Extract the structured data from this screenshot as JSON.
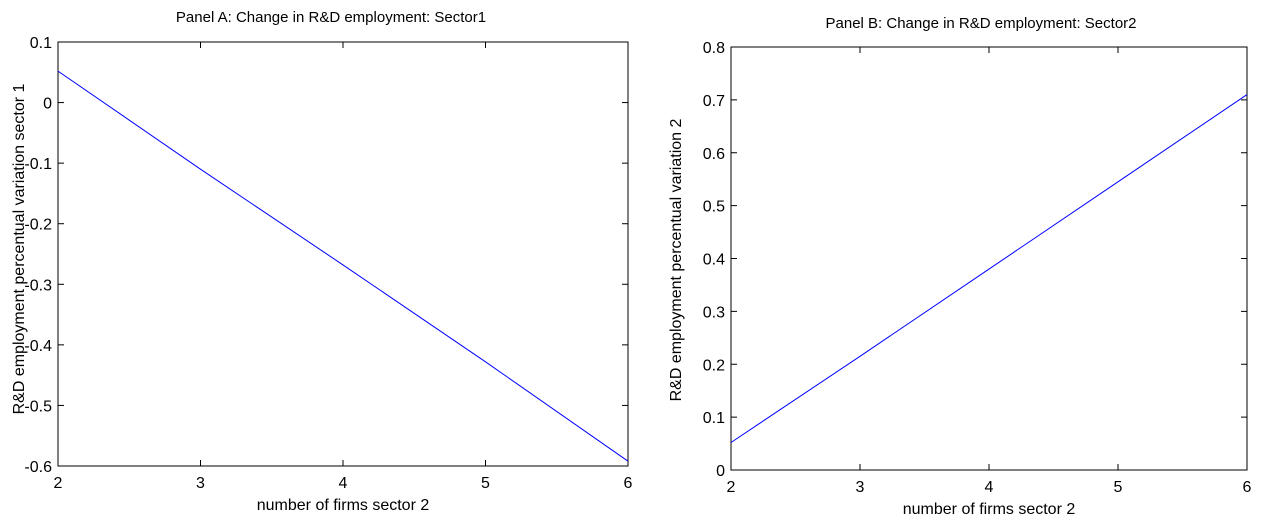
{
  "chart_data": [
    {
      "type": "line",
      "title": "Panel A: Change in R&D employment: Sector1",
      "xlabel": "number of firms sector 2",
      "ylabel": "R&D employment percentual variation sector 1",
      "xlim": [
        2,
        6
      ],
      "ylim": [
        -0.6,
        0.1
      ],
      "xticks": [
        2,
        3,
        4,
        5,
        6
      ],
      "xtick_labels": [
        "2",
        "3",
        "4",
        "5",
        "6"
      ],
      "yticks": [
        -0.6,
        -0.5,
        -0.4,
        -0.3,
        -0.2,
        -0.1,
        0,
        0.1
      ],
      "ytick_labels": [
        "-0.6",
        "-0.5",
        "-0.4",
        "-0.3",
        "-0.2",
        "-0.1",
        "0",
        "0.1"
      ],
      "grid": false,
      "series": [
        {
          "color": "#0000ff",
          "x": [
            2,
            3,
            4,
            5,
            6
          ],
          "y": [
            0.052,
            -0.11,
            -0.268,
            -0.428,
            -0.592
          ]
        }
      ]
    },
    {
      "type": "line",
      "title": "Panel B: Change in R&D employment: Sector2",
      "xlabel": "number of firms sector 2",
      "ylabel": "R&D employment percentual variation 2",
      "xlim": [
        2,
        6
      ],
      "ylim": [
        0,
        0.8
      ],
      "xticks": [
        2,
        3,
        4,
        5,
        6
      ],
      "xtick_labels": [
        "2",
        "3",
        "4",
        "5",
        "6"
      ],
      "yticks": [
        0,
        0.1,
        0.2,
        0.3,
        0.4,
        0.5,
        0.6,
        0.7,
        0.8
      ],
      "ytick_labels": [
        "0",
        "0.1",
        "0.2",
        "0.3",
        "0.4",
        "0.5",
        "0.6",
        "0.7",
        "0.8"
      ],
      "grid": false,
      "series": [
        {
          "color": "#0000ff",
          "x": [
            2,
            3,
            4,
            5,
            6
          ],
          "y": [
            0.052,
            0.215,
            0.38,
            0.545,
            0.71
          ]
        }
      ]
    }
  ]
}
